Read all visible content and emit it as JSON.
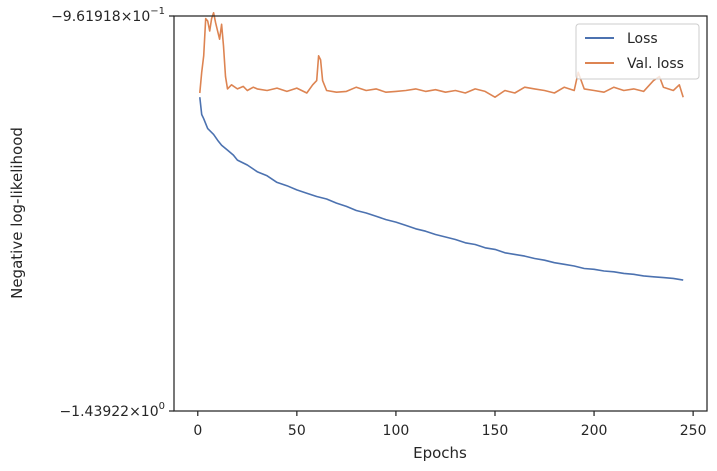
{
  "chart_data": {
    "type": "line",
    "xlabel": "Epochs",
    "ylabel": "Negative log-likelihood",
    "xlim": [
      -12,
      257
    ],
    "xticks": [
      0,
      50,
      100,
      150,
      200,
      250
    ],
    "xtick_labels": [
      "0",
      "50",
      "100",
      "150",
      "200",
      "250"
    ],
    "ylim": [
      -1.43922,
      -0.961918
    ],
    "y_scale": "symlog",
    "ytick_labels": [
      {
        "base": "−9.61918",
        "mult": "×",
        "pow_base": "10",
        "exp": "−1"
      },
      {
        "base": "−1.43922",
        "mult": "×",
        "pow_base": "10",
        "exp": "0"
      }
    ],
    "grid": false,
    "legend_position": "upper right",
    "series": [
      {
        "name": "Loss",
        "color": "#4c72b0",
        "x": [
          1,
          2,
          3,
          5,
          8,
          10,
          12,
          15,
          18,
          20,
          25,
          30,
          35,
          40,
          45,
          50,
          55,
          60,
          65,
          70,
          75,
          80,
          85,
          90,
          95,
          100,
          105,
          110,
          115,
          120,
          125,
          130,
          135,
          140,
          145,
          150,
          155,
          160,
          165,
          170,
          175,
          180,
          185,
          190,
          195,
          200,
          205,
          210,
          215,
          220,
          225,
          230,
          235,
          240,
          245
        ],
        "values": [
          -1.06,
          -1.081,
          -1.086,
          -1.098,
          -1.105,
          -1.112,
          -1.118,
          -1.124,
          -1.13,
          -1.136,
          -1.142,
          -1.15,
          -1.155,
          -1.163,
          -1.167,
          -1.172,
          -1.176,
          -1.18,
          -1.183,
          -1.188,
          -1.192,
          -1.197,
          -1.2,
          -1.204,
          -1.208,
          -1.211,
          -1.215,
          -1.219,
          -1.222,
          -1.226,
          -1.229,
          -1.232,
          -1.236,
          -1.238,
          -1.242,
          -1.244,
          -1.248,
          -1.25,
          -1.252,
          -1.255,
          -1.257,
          -1.26,
          -1.262,
          -1.264,
          -1.267,
          -1.268,
          -1.27,
          -1.271,
          -1.273,
          -1.274,
          -1.276,
          -1.277,
          -1.278,
          -1.279,
          -1.281
        ]
      },
      {
        "name": "Val. loss",
        "color": "#dd8452",
        "x": [
          1,
          2,
          3,
          4,
          5,
          6,
          7,
          8,
          9,
          10,
          11,
          12,
          13,
          14,
          15,
          17,
          20,
          23,
          25,
          28,
          30,
          35,
          40,
          45,
          50,
          55,
          58,
          60,
          61,
          62,
          63,
          65,
          70,
          75,
          80,
          85,
          90,
          95,
          100,
          105,
          110,
          115,
          120,
          125,
          130,
          135,
          140,
          145,
          150,
          155,
          160,
          165,
          170,
          175,
          180,
          185,
          190,
          192,
          195,
          200,
          205,
          210,
          215,
          220,
          225,
          230,
          233,
          235,
          240,
          243,
          245
        ],
        "values": [
          -1.055,
          -1.03,
          -1.01,
          -0.965,
          -0.968,
          -0.98,
          -0.965,
          -0.958,
          -0.97,
          -0.98,
          -0.99,
          -0.972,
          -0.998,
          -1.035,
          -1.05,
          -1.045,
          -1.05,
          -1.047,
          -1.052,
          -1.048,
          -1.05,
          -1.052,
          -1.049,
          -1.053,
          -1.049,
          -1.055,
          -1.045,
          -1.04,
          -1.01,
          -1.015,
          -1.04,
          -1.052,
          -1.054,
          -1.053,
          -1.048,
          -1.052,
          -1.05,
          -1.054,
          -1.053,
          -1.052,
          -1.05,
          -1.053,
          -1.051,
          -1.054,
          -1.052,
          -1.055,
          -1.05,
          -1.053,
          -1.06,
          -1.052,
          -1.055,
          -1.048,
          -1.05,
          -1.052,
          -1.055,
          -1.048,
          -1.052,
          -1.03,
          -1.05,
          -1.052,
          -1.054,
          -1.048,
          -1.052,
          -1.05,
          -1.053,
          -1.04,
          -1.035,
          -1.048,
          -1.052,
          -1.045,
          -1.06
        ]
      }
    ]
  }
}
